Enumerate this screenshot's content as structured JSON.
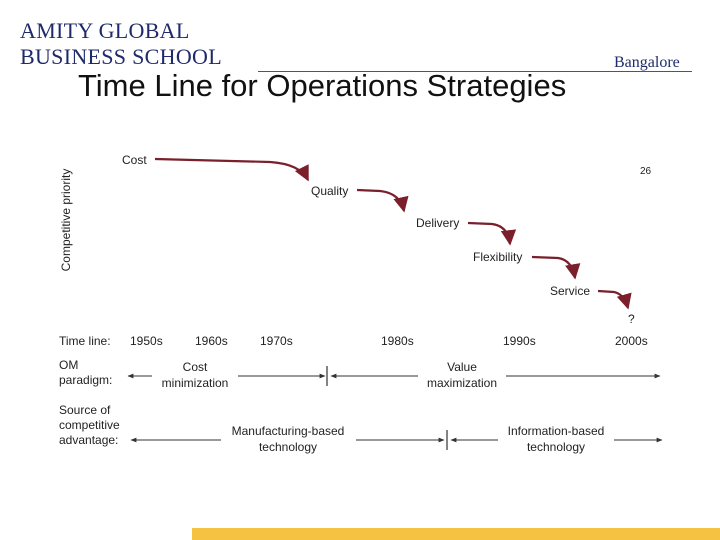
{
  "header": {
    "brand_line1": "AMITY GLOBAL",
    "brand_line2": "BUSINESS SCHOOL",
    "campus": "Bangalore"
  },
  "slide": {
    "title": "Time Line for Operations Strategies",
    "page_number": "26"
  },
  "diagram": {
    "y_axis_label": "Competitive priority",
    "priorities": [
      "Cost",
      "Quality",
      "Delivery",
      "Flexibility",
      "Service",
      "?"
    ],
    "timeline_label": "Time line:",
    "decades": [
      "1950s",
      "1960s",
      "1970s",
      "1980s",
      "1990s",
      "2000s"
    ],
    "om_paradigm_label": [
      "OM",
      "paradigm:"
    ],
    "om_paradigm_phases": [
      [
        "Cost",
        "minimization"
      ],
      [
        "Value",
        "maximization"
      ]
    ],
    "advantage_label": [
      "Source of",
      "competitive",
      "advantage:"
    ],
    "advantage_phases": [
      [
        "Manufacturing-based",
        "technology"
      ],
      [
        "Information-based",
        "technology"
      ]
    ],
    "colors": {
      "arrow": "#7a1f2b",
      "text": "#222222",
      "brand": "#1f2a6b",
      "footer": "#f5c242"
    }
  }
}
